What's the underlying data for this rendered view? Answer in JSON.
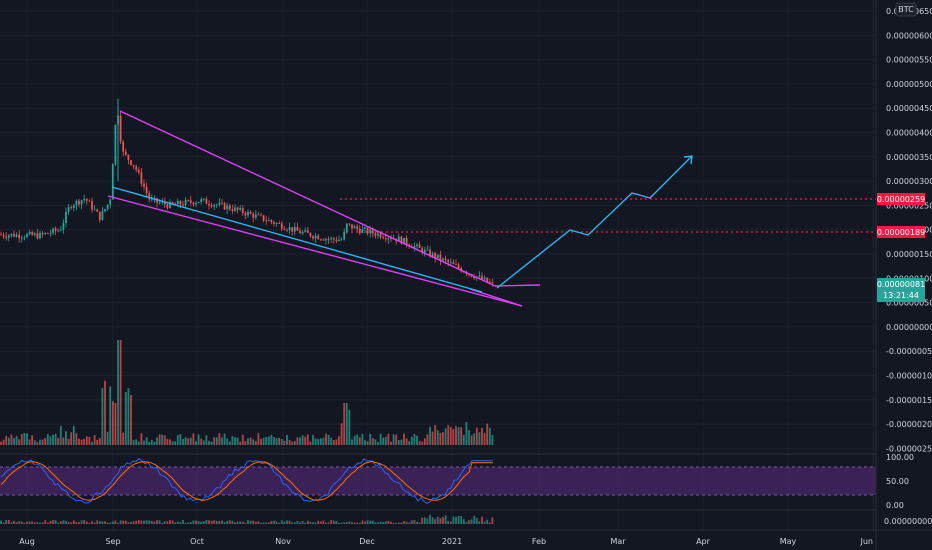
{
  "currency_badge": "BTC",
  "price_axis": {
    "ticks": [
      "0.00000650",
      "0.00000600",
      "0.00000550",
      "0.00000500",
      "0.00000450",
      "0.00000400",
      "0.00000350",
      "0.00000300",
      "0.00000250",
      "0.00000200",
      "0.00000150",
      "0.00000100",
      "0.00000050",
      "0.00000000",
      "-0.00000050",
      "-0.00000100",
      "-0.00000150",
      "-0.00000200",
      "-0.00000250"
    ],
    "tick_values": [
      650,
      600,
      550,
      500,
      450,
      400,
      350,
      300,
      250,
      200,
      150,
      100,
      50,
      0,
      -50,
      -100,
      -150,
      -200,
      -250
    ]
  },
  "price_tags": {
    "level_high": "0.00000259",
    "level_mid": "0.00000189",
    "last_price": "0.00000081",
    "countdown": "13:21:44"
  },
  "oscillator_axis": {
    "ticks": [
      "100.00",
      "50.00",
      "0.00"
    ]
  },
  "volume_axis": {
    "ticks": [
      "0.00000000"
    ]
  },
  "time_axis": {
    "ticks": [
      "Aug",
      "Sep",
      "Oct",
      "Nov",
      "Dec",
      "2021",
      "Feb",
      "Mar",
      "Apr",
      "May",
      "Jun"
    ]
  },
  "colors": {
    "background": "#131722",
    "up": "#26a69a",
    "down": "#ef5350",
    "wedge": "#e040fb",
    "trendline": "#29b6f6",
    "level": "#ff1744",
    "osc_band": "#5b2c83",
    "k_line": "#2962ff",
    "d_line": "#ff6d00"
  },
  "chart_data": {
    "type": "candlestick",
    "unit": "BTC",
    "y_tick_interval": 5e-07,
    "horizontal_levels": [
      2.59e-06,
      1.89e-06
    ],
    "last_price": 8.1e-07,
    "key_prices": [
      {
        "period": "Aug",
        "price": 1.9e-06
      },
      {
        "period": "late Aug",
        "price": 2.6e-06
      },
      {
        "period": "early Sep (peak)",
        "price": 4.6e-06
      },
      {
        "period": "Oct",
        "price": 2.4e-06
      },
      {
        "period": "Nov",
        "price": 1.5e-06
      },
      {
        "period": "late Nov",
        "price": 2.1e-06
      },
      {
        "period": "Dec",
        "price": 1.3e-06
      },
      {
        "period": "Jan 2021",
        "price": 8.1e-07
      }
    ],
    "projection_path": [
      {
        "period": "mid Jan 2021",
        "price": 8.2e-07
      },
      {
        "period": "early Feb",
        "price": 1.89e-06
      },
      {
        "period": "mid Feb",
        "price": 1.8e-06
      },
      {
        "period": "late Feb",
        "price": 2.6e-06
      },
      {
        "period": "early Mar",
        "price": 2.5e-06
      },
      {
        "period": "late Mar",
        "price": 3.5e-06
      }
    ],
    "oscillator_range": [
      0,
      100
    ],
    "oscillator_levels": [
      80,
      20
    ]
  }
}
